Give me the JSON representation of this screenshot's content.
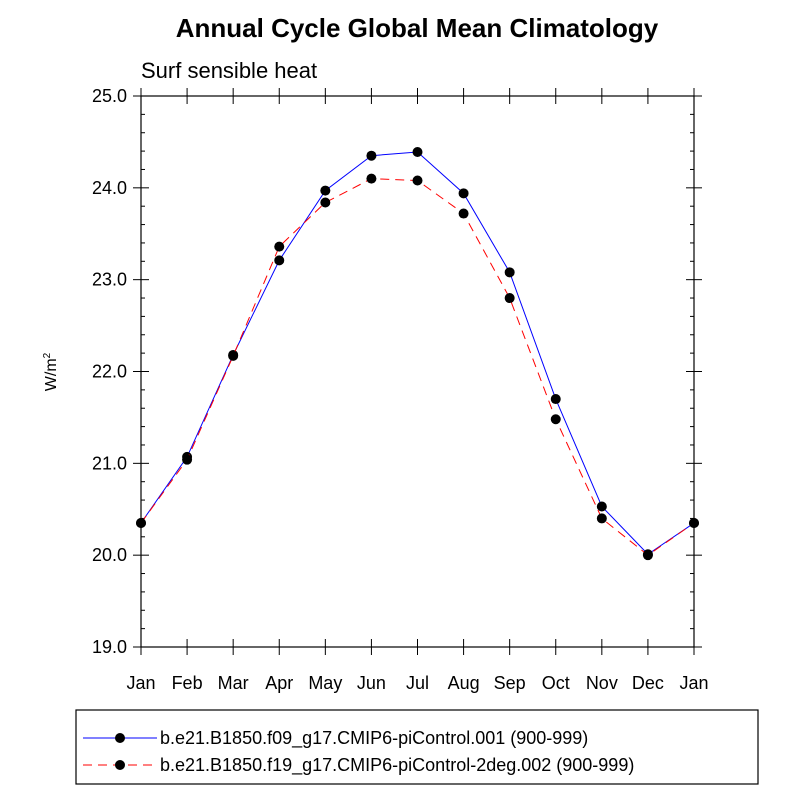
{
  "chart_data": {
    "type": "line",
    "title": "Annual Cycle Global Mean Climatology",
    "subtitle": "Surf sensible heat",
    "xlabel": "",
    "ylabel_base": "W/m",
    "ylabel_exponent": "2",
    "ylim": [
      19.0,
      25.0
    ],
    "yticks": [
      "19.0",
      "20.0",
      "21.0",
      "22.0",
      "23.0",
      "24.0",
      "25.0"
    ],
    "categories": [
      "Jan",
      "Feb",
      "Mar",
      "Apr",
      "May",
      "Jun",
      "Jul",
      "Aug",
      "Sep",
      "Oct",
      "Nov",
      "Dec",
      "Jan"
    ],
    "grid": false,
    "legend_position": "bottom",
    "series": [
      {
        "name": "b.e21.B1850.f09_g17.CMIP6-piControl.001 (900-999)",
        "color": "#0000ff",
        "dash": "solid",
        "values": [
          20.35,
          21.07,
          22.18,
          23.21,
          23.97,
          24.35,
          24.39,
          23.94,
          23.08,
          21.7,
          20.53,
          20.01,
          20.35
        ]
      },
      {
        "name": "b.e21.B1850.f19_g17.CMIP6-piControl-2deg.002 (900-999)",
        "color": "#ff0000",
        "dash": "dashed",
        "values": [
          20.35,
          21.04,
          22.17,
          23.36,
          23.84,
          24.1,
          24.08,
          23.72,
          22.8,
          21.48,
          20.4,
          20.0,
          20.35
        ]
      }
    ]
  }
}
